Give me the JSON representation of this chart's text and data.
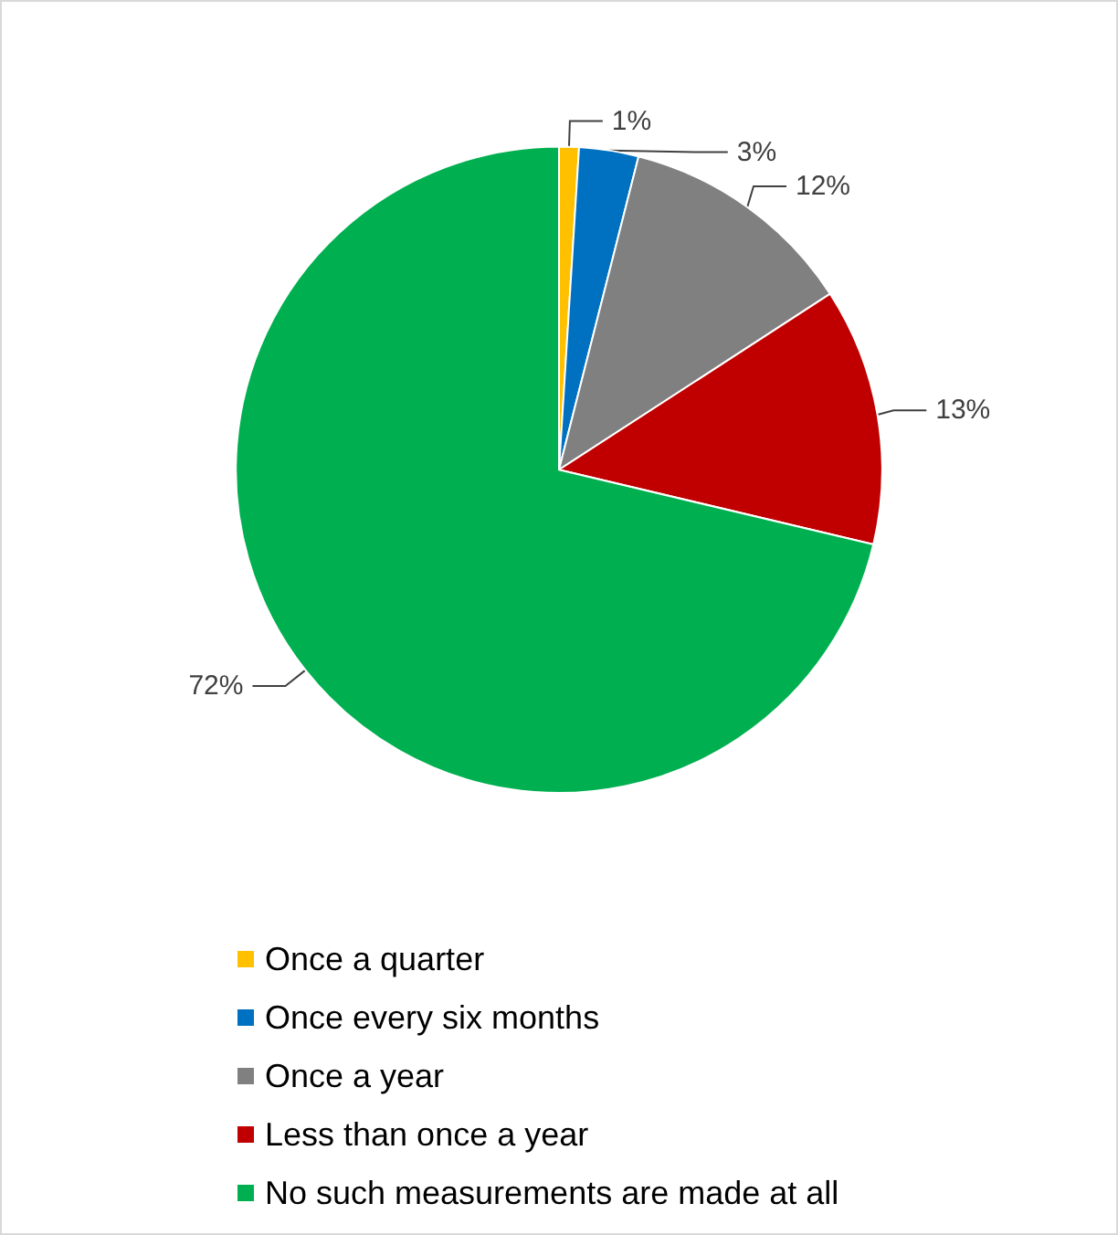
{
  "chart_data": {
    "type": "pie",
    "categories": [
      "Once a quarter",
      "Once every six months",
      "Once a year",
      "Less than once a year",
      "No such measurements are made at all"
    ],
    "values": [
      1,
      3,
      12,
      13,
      72
    ],
    "colors": [
      "#ffc000",
      "#0070c0",
      "#808080",
      "#c00000",
      "#00b050"
    ],
    "value_labels": [
      "1%",
      "3%",
      "12%",
      "13%",
      "72%"
    ],
    "legend": "bottom"
  }
}
